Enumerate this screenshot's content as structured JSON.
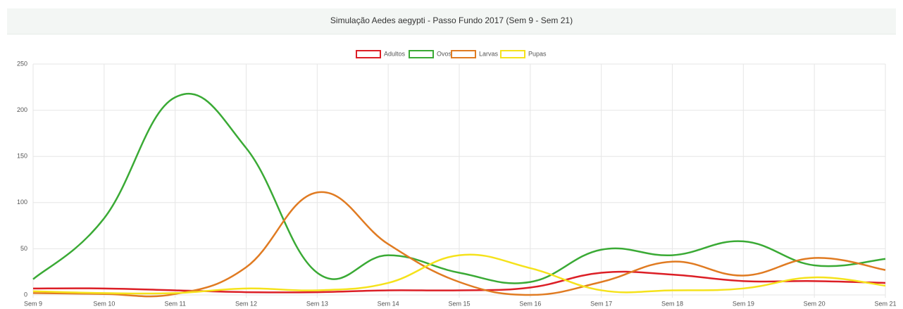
{
  "chart_data": {
    "type": "line",
    "title": "Simulação Aedes aegypti - Passo Fundo 2017 (Sem 9 - Sem 21)",
    "categories": [
      "Sem 9",
      "Sem 10",
      "Sem 11",
      "Sem 12",
      "Sem 13",
      "Sem 14",
      "Sem 15",
      "Sem 16",
      "Sem 17",
      "Sem 18",
      "Sem 19",
      "Sem 20",
      "Sem 21"
    ],
    "series": [
      {
        "name": "Adultos",
        "color": "#dc1f26",
        "values": [
          7,
          7,
          5,
          3,
          3,
          5,
          5,
          8,
          24,
          22,
          15,
          15,
          13
        ]
      },
      {
        "name": "Ovos",
        "color": "#3aaa35",
        "values": [
          17,
          83,
          214,
          159,
          24,
          43,
          24,
          14,
          49,
          43,
          58,
          32,
          39
        ]
      },
      {
        "name": "Larvas",
        "color": "#e07b22",
        "values": [
          2,
          1,
          1,
          30,
          111,
          55,
          14,
          0,
          14,
          36,
          21,
          40,
          27
        ]
      },
      {
        "name": "Pupas",
        "color": "#f5e21b",
        "values": [
          4,
          2,
          2,
          7,
          5,
          13,
          43,
          29,
          5,
          5,
          7,
          19,
          10
        ]
      }
    ],
    "ylim": [
      0,
      250
    ],
    "yticks": [
      0,
      50,
      100,
      150,
      200,
      250
    ],
    "grid": true,
    "legend": "top"
  }
}
